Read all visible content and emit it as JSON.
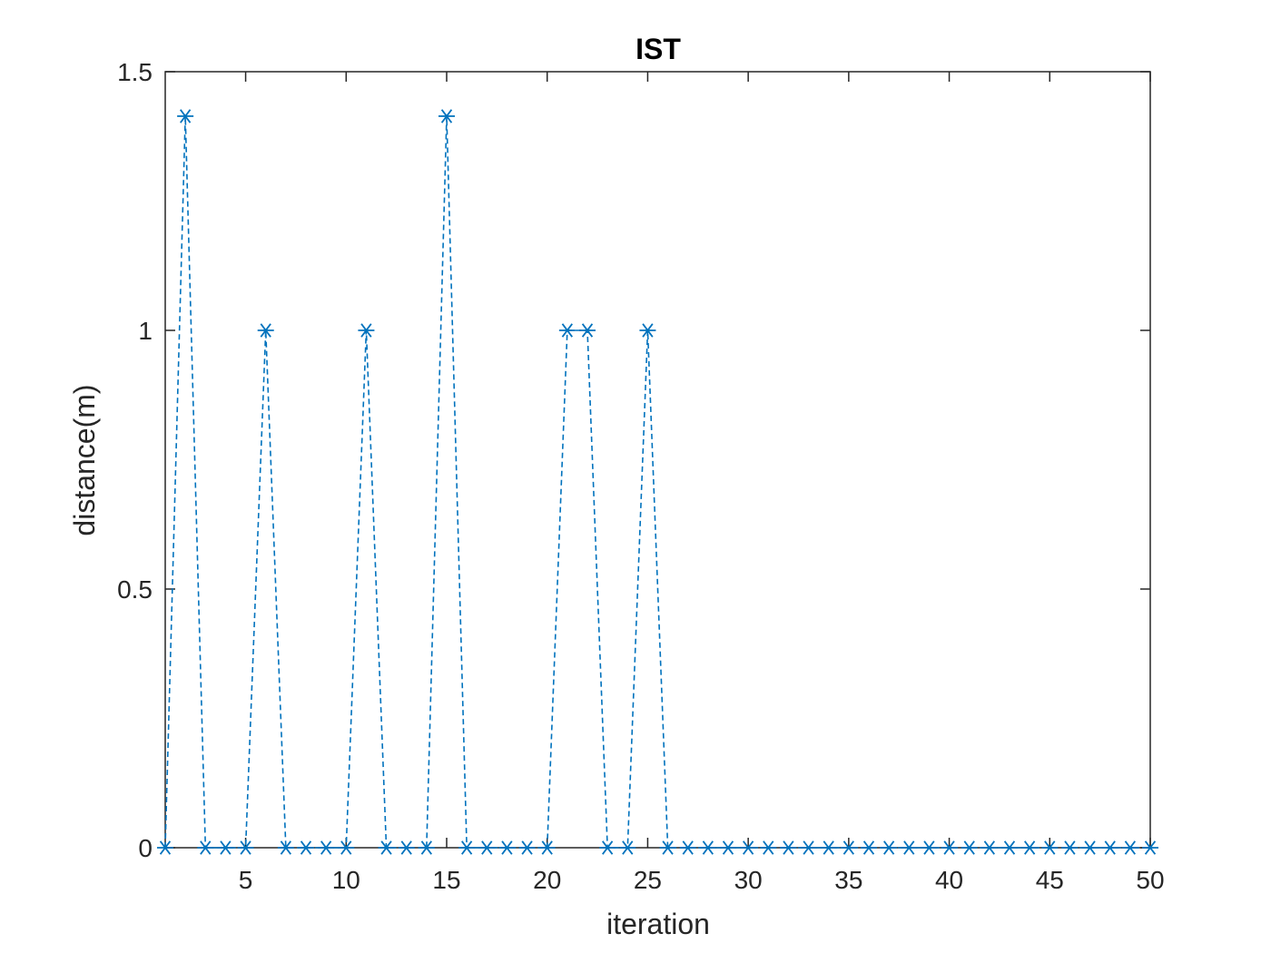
{
  "chart_data": {
    "type": "line",
    "title": "IST",
    "xlabel": "iteration",
    "ylabel": "distance(m)",
    "xlim": [
      1,
      50
    ],
    "ylim": [
      0,
      1.5
    ],
    "x_ticks": [
      5,
      10,
      15,
      20,
      25,
      30,
      35,
      40,
      45,
      50
    ],
    "x_tick_labels": [
      "5",
      "10",
      "15",
      "20",
      "25",
      "30",
      "35",
      "40",
      "45",
      "50"
    ],
    "y_ticks": [
      0,
      0.5,
      1,
      1.5
    ],
    "y_tick_labels": [
      "0",
      "0.5",
      "1",
      "1.5"
    ],
    "grid": false,
    "line_style": "dashed",
    "marker": "asterisk",
    "color": "#0072BD",
    "series": [
      {
        "x": [
          1,
          2,
          3,
          4,
          5,
          6,
          7,
          8,
          9,
          10,
          11,
          12,
          13,
          14,
          15,
          16,
          17,
          18,
          19,
          20,
          21,
          22,
          23,
          24,
          25,
          26,
          27,
          28,
          29,
          30,
          31,
          32,
          33,
          34,
          35,
          36,
          37,
          38,
          39,
          40,
          41,
          42,
          43,
          44,
          45,
          46,
          47,
          48,
          49,
          50
        ],
        "values": [
          0,
          1.414,
          0,
          0,
          0,
          1,
          0,
          0,
          0,
          0,
          1,
          0,
          0,
          0,
          1.414,
          0,
          0,
          0,
          0,
          0,
          1,
          1,
          0,
          0,
          1,
          0,
          0,
          0,
          0,
          0,
          0,
          0,
          0,
          0,
          0,
          0,
          0,
          0,
          0,
          0,
          0,
          0,
          0,
          0,
          0,
          0,
          0,
          0,
          0,
          0
        ]
      }
    ]
  }
}
